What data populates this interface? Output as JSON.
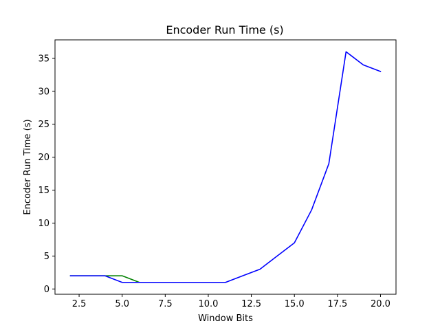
{
  "chart_data": {
    "type": "line",
    "title": "Encoder Run Time (s)",
    "xlabel": "Window Bits",
    "ylabel": "Encoder Run Time (s)",
    "xlim": [
      1.1,
      20.9
    ],
    "ylim": [
      -0.8,
      37.8
    ],
    "grid": false,
    "xticks": [
      2.5,
      5.0,
      7.5,
      10.0,
      12.5,
      15.0,
      17.5,
      20.0
    ],
    "xtick_labels": [
      "2.5",
      "5.0",
      "7.5",
      "10.0",
      "12.5",
      "15.0",
      "17.5",
      "20.0"
    ],
    "yticks": [
      0,
      5,
      10,
      15,
      20,
      25,
      30,
      35
    ],
    "ytick_labels": [
      "0",
      "5",
      "10",
      "15",
      "20",
      "25",
      "30",
      "35"
    ],
    "series": [
      {
        "name": "series-green",
        "color": "#008000",
        "x": [
          2,
          3,
          4,
          5,
          6,
          7,
          8,
          9,
          10,
          11
        ],
        "y": [
          2,
          2,
          2,
          2,
          1,
          1,
          1,
          1,
          1,
          1
        ]
      },
      {
        "name": "series-blue",
        "color": "#0000ff",
        "x": [
          2,
          3,
          4,
          5,
          6,
          7,
          8,
          9,
          10,
          11,
          12,
          13,
          14,
          15,
          16,
          17,
          18,
          19,
          20
        ],
        "y": [
          2,
          2,
          2,
          1,
          1,
          1,
          1,
          1,
          1,
          1,
          2,
          3,
          5,
          7,
          12,
          19,
          36,
          34,
          33
        ]
      }
    ]
  }
}
